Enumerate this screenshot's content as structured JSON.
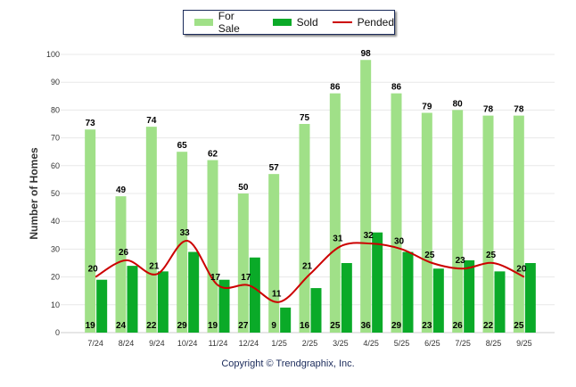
{
  "chart_data": {
    "type": "bar",
    "ylabel": "Number of Homes",
    "ylim": [
      0,
      100
    ],
    "yticks": [
      0,
      10,
      20,
      30,
      40,
      50,
      60,
      70,
      80,
      90,
      100
    ],
    "categories": [
      "7/24",
      "8/24",
      "9/24",
      "10/24",
      "11/24",
      "12/24",
      "1/25",
      "2/25",
      "3/25",
      "4/25",
      "5/25",
      "6/25",
      "7/25",
      "8/25",
      "9/25"
    ],
    "series": [
      {
        "name": "For Sale",
        "type": "bar",
        "color": "#a0e088",
        "values": [
          73,
          49,
          74,
          65,
          62,
          50,
          57,
          75,
          86,
          98,
          86,
          79,
          80,
          78,
          78
        ]
      },
      {
        "name": "Sold",
        "type": "bar",
        "color": "#0aaa28",
        "values": [
          19,
          24,
          22,
          29,
          19,
          27,
          9,
          16,
          25,
          36,
          29,
          23,
          26,
          22,
          25
        ]
      },
      {
        "name": "Pended",
        "type": "line",
        "color": "#cc0000",
        "values": [
          20,
          26,
          21,
          33,
          17,
          17,
          11,
          21,
          31,
          32,
          30,
          25,
          23,
          25,
          20
        ]
      }
    ],
    "legend": {
      "position": "top-center"
    },
    "grid": true
  },
  "footer": {
    "copyright": "Copyright © Trendgraphix, Inc."
  }
}
